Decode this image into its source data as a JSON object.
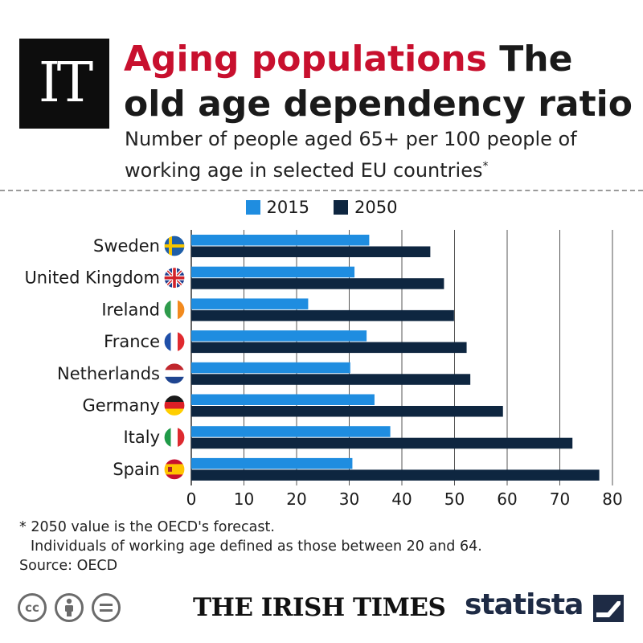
{
  "header": {
    "logo_text": "IT",
    "title_accent": "Aging populations",
    "title_rest": " The old age dependency ratio",
    "subtitle": "Number of people aged 65+ per 100 people of working age in selected EU countries",
    "subtitle_mark": "*"
  },
  "colors": {
    "series_2015": "#1f8de0",
    "series_2050": "#0e2640",
    "accent": "#c8102e"
  },
  "chart_data": {
    "type": "bar",
    "orientation": "horizontal",
    "categories": [
      "Sweden",
      "United Kingdom",
      "Ireland",
      "France",
      "Netherlands",
      "Germany",
      "Italy",
      "Spain"
    ],
    "series": [
      {
        "name": "2015",
        "values": [
          33.8,
          31.0,
          22.2,
          33.3,
          30.2,
          34.8,
          37.8,
          30.6
        ]
      },
      {
        "name": "2050",
        "values": [
          45.4,
          48.0,
          49.9,
          52.3,
          53.0,
          59.2,
          72.4,
          77.5
        ]
      }
    ],
    "xlim": [
      0,
      80
    ],
    "xticks": [
      0,
      10,
      20,
      30,
      40,
      50,
      60,
      70,
      80
    ],
    "grid": true,
    "legend_position": "top"
  },
  "flags": [
    "sweden-flag-icon",
    "uk-flag-icon",
    "ireland-flag-icon",
    "france-flag-icon",
    "netherlands-flag-icon",
    "germany-flag-icon",
    "italy-flag-icon",
    "spain-flag-icon"
  ],
  "footer": {
    "note_1": "* 2050 value is the OECD's forecast.",
    "note_2": "Individuals of working age defined as those between 20 and 64.",
    "source": "Source: OECD",
    "cc_label": "cc",
    "publisher": "THE IRISH TIMES",
    "brand": "statista"
  }
}
